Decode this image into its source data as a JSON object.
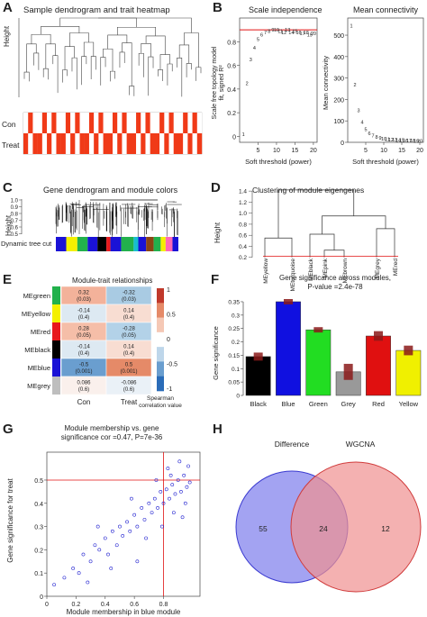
{
  "figure": {
    "panels": {
      "A": {
        "letter": "A",
        "title": "Sample dendrogram and trait heatmap",
        "ylabel": "Height",
        "rows": [
          "Con",
          "Treat"
        ]
      },
      "B": {
        "letter": "B"
      },
      "C": {
        "letter": "C",
        "title": "Gene dendrogram and module colors",
        "ylabel": "Height",
        "yticks": [
          "1.0",
          "0.9",
          "0.8",
          "0.7",
          "0.6",
          "0.5"
        ],
        "track_label": "Dynamic tree cut"
      },
      "D": {
        "letter": "D",
        "title": "Clustering of module eigengenes",
        "ylabel": "Height",
        "yticks": [
          "1.4",
          "1.2",
          "1.0",
          "0.8",
          "0.6",
          "0.4",
          "0.2"
        ],
        "leaves": [
          "MEyellow",
          "MEturquoise",
          "MEblack",
          "MEpink",
          "MEbrown",
          "MEgrey",
          "MEred"
        ]
      },
      "E": {
        "letter": "E",
        "title": "Module-trait relationships",
        "cols": [
          "Con",
          "Treat"
        ],
        "rows": [
          {
            "name": "MEgreen",
            "color": "#22b14c",
            "cells": [
              {
                "v": "0.32",
                "p": "(0.03)",
                "c": "#f3b29a"
              },
              {
                "v": "-0.32",
                "p": "(0.03)",
                "c": "#a9cbe3"
              }
            ]
          },
          {
            "name": "MEyellow",
            "color": "#f4f000",
            "cells": [
              {
                "v": "-0.14",
                "p": "(0.4)",
                "c": "#dde9f2"
              },
              {
                "v": "0.14",
                "p": "(0.4)",
                "c": "#f8ddd2"
              }
            ]
          },
          {
            "name": "MEred",
            "color": "#e8191c",
            "cells": [
              {
                "v": "0.28",
                "p": "(0.05)",
                "c": "#f5bea8"
              },
              {
                "v": "-0.28",
                "p": "(0.05)",
                "c": "#b3d2e8"
              }
            ]
          },
          {
            "name": "MEblack",
            "color": "#000000",
            "cells": [
              {
                "v": "-0.14",
                "p": "(0.4)",
                "c": "#dde9f2"
              },
              {
                "v": "0.14",
                "p": "(0.4)",
                "c": "#f8ddd2"
              }
            ]
          },
          {
            "name": "MEblue",
            "color": "#1a12d6",
            "cells": [
              {
                "v": "-0.5",
                "p": "(0.001)",
                "c": "#6a9ecf"
              },
              {
                "v": "0.5",
                "p": "(0.001)",
                "c": "#e58a68"
              }
            ]
          },
          {
            "name": "MEgrey",
            "color": "#bebebe",
            "cells": [
              {
                "v": "0.086",
                "p": "(0.6)",
                "c": "#faf0ec"
              },
              {
                "v": "-0.086",
                "p": "(0.6)",
                "c": "#eaf1f7"
              }
            ]
          }
        ],
        "legend_ticks": [
          "1",
          "0.5",
          "0",
          "-0.5",
          "-1"
        ],
        "legend_title_1": "Spearman",
        "legend_title_2": "correlation value"
      },
      "F": {
        "letter": "F"
      },
      "G": {
        "letter": "G"
      },
      "H": {
        "letter": "H"
      }
    }
  },
  "chart_data": [
    {
      "panel": "B",
      "type": "scatter",
      "title": "Scale independence",
      "xlabel": "Soft threshold (power)",
      "ylabel": "Scale free topology model fit, signed R²",
      "xlim": [
        0,
        21
      ],
      "ylim": [
        -0.05,
        1.0
      ],
      "xticks": [
        5,
        10,
        15,
        20
      ],
      "yticks": [
        0.0,
        0.2,
        0.4,
        0.6,
        0.8
      ],
      "hline": 0.9,
      "x": [
        1,
        2,
        3,
        4,
        5,
        6,
        7,
        8,
        9,
        10,
        11,
        12,
        13,
        14,
        15,
        16,
        17,
        18,
        19,
        20
      ],
      "y": [
        0.02,
        0.45,
        0.65,
        0.75,
        0.82,
        0.86,
        0.88,
        0.89,
        0.9,
        0.9,
        0.89,
        0.88,
        0.9,
        0.88,
        0.89,
        0.88,
        0.87,
        0.88,
        0.86,
        0.87
      ],
      "point_labels": [
        "1",
        "2",
        "3",
        "4",
        "5",
        "6",
        "7",
        "8",
        "9",
        "10",
        "11",
        "12",
        "13",
        "14",
        "15",
        "16",
        "17",
        "18",
        "19",
        "20"
      ]
    },
    {
      "panel": "B",
      "type": "scatter",
      "title": "Mean connectivity",
      "xlabel": "Soft threshold (power)",
      "ylabel": "Mean connectivity",
      "xlim": [
        0,
        21
      ],
      "ylim": [
        0,
        580
      ],
      "xticks": [
        5,
        10,
        15,
        20
      ],
      "yticks": [
        0,
        100,
        200,
        300,
        400,
        500
      ],
      "x": [
        1,
        2,
        3,
        4,
        5,
        6,
        7,
        8,
        9,
        10,
        11,
        12,
        13,
        14,
        15,
        16,
        17,
        18,
        19,
        20
      ],
      "y": [
        545,
        270,
        150,
        95,
        60,
        42,
        32,
        25,
        20,
        17,
        15,
        13,
        12,
        11,
        10,
        9,
        8,
        8,
        7,
        7
      ],
      "point_labels": [
        "1",
        "2",
        "3",
        "4",
        "5",
        "6",
        "7",
        "8",
        "9",
        "10",
        "11",
        "12",
        "13",
        "14",
        "15",
        "16",
        "17",
        "18",
        "19",
        "20"
      ]
    },
    {
      "panel": "F",
      "type": "bar",
      "title": "Gene significance across modules,",
      "subtitle": "P-value =2.4e-78",
      "ylabel": "Gene significance",
      "categories": [
        "Black",
        "Blue",
        "Green",
        "Grey",
        "Red",
        "Yellow"
      ],
      "values": [
        0.145,
        0.35,
        0.245,
        0.088,
        0.222,
        0.168
      ],
      "errors": [
        0.015,
        0.01,
        0.01,
        0.03,
        0.018,
        0.018
      ],
      "colors": [
        "#000000",
        "#1010e0",
        "#22dd22",
        "#999999",
        "#e01010",
        "#f0f000"
      ],
      "ylim": [
        0,
        0.36
      ],
      "yticks": [
        0.0,
        0.05,
        0.1,
        0.15,
        0.2,
        0.25,
        0.3,
        0.35
      ]
    },
    {
      "panel": "G",
      "type": "scatter",
      "title": "Module membership vs. gene",
      "subtitle": "significance cor =0.47, P=7e-36",
      "xlabel": "Module membership in blue module",
      "ylabel": "Gene significance for treat",
      "xlim": [
        0,
        1.05
      ],
      "ylim": [
        0,
        0.62
      ],
      "xticks": [
        0.0,
        0.2,
        0.4,
        0.6,
        0.8
      ],
      "yticks": [
        0.0,
        0.1,
        0.2,
        0.3,
        0.4,
        0.5
      ],
      "vline": 0.8,
      "hline": 0.5,
      "x": [
        0.05,
        0.12,
        0.18,
        0.22,
        0.25,
        0.3,
        0.33,
        0.36,
        0.4,
        0.42,
        0.45,
        0.48,
        0.5,
        0.52,
        0.55,
        0.57,
        0.6,
        0.62,
        0.65,
        0.67,
        0.7,
        0.72,
        0.74,
        0.76,
        0.78,
        0.8,
        0.82,
        0.84,
        0.86,
        0.88,
        0.9,
        0.92,
        0.94,
        0.96,
        0.98,
        0.35,
        0.44,
        0.58,
        0.68,
        0.75,
        0.83,
        0.87,
        0.91,
        0.95,
        0.28,
        0.62,
        0.79,
        0.85,
        0.93,
        0.97
      ],
      "y": [
        0.05,
        0.08,
        0.12,
        0.1,
        0.18,
        0.15,
        0.22,
        0.2,
        0.25,
        0.18,
        0.28,
        0.22,
        0.3,
        0.26,
        0.32,
        0.28,
        0.35,
        0.3,
        0.38,
        0.33,
        0.4,
        0.36,
        0.42,
        0.38,
        0.45,
        0.4,
        0.46,
        0.42,
        0.48,
        0.44,
        0.5,
        0.45,
        0.52,
        0.47,
        0.49,
        0.3,
        0.12,
        0.42,
        0.25,
        0.5,
        0.55,
        0.36,
        0.58,
        0.4,
        0.06,
        0.15,
        0.3,
        0.52,
        0.34,
        0.56
      ]
    },
    {
      "panel": "H",
      "type": "venn",
      "sets": [
        "Difference",
        "WGCNA"
      ],
      "only_a": "55",
      "both": "24",
      "only_b": "12",
      "colors": [
        "#9393f0",
        "#f09090"
      ]
    }
  ]
}
